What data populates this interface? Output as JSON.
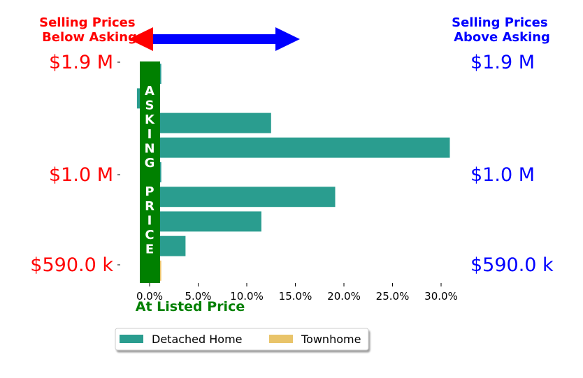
{
  "header": {
    "left_note": [
      "Selling Prices",
      "Below Asking"
    ],
    "right_note": [
      "Selling Prices",
      "Above Asking"
    ]
  },
  "colors": {
    "below": "#ff0000",
    "above": "#0000ff",
    "asking": "#008000",
    "detached": "#2a9d8f",
    "townhome": "#e9c46a"
  },
  "chart_data": {
    "type": "bar",
    "orientation": "horizontal",
    "xlabel": "At Listed Price",
    "xlim": [
      -0.015,
      0.322
    ],
    "x_ticks": [
      "0.0%",
      "5.0%",
      "10.0%",
      "15.0%",
      "20.0%",
      "25.0%",
      "30.0%"
    ],
    "x_tick_values": [
      0,
      0.05,
      0.1,
      0.15,
      0.2,
      0.25,
      0.3
    ],
    "y_ticks_left": [
      "$1.9 M",
      "$1.0 M",
      "$590.0 k"
    ],
    "y_ticks_right": [
      "$1.9 M",
      "$1.0 M",
      "$590.0 k"
    ],
    "asking_band_text": [
      "A",
      "S",
      "K",
      "I",
      "N",
      "G",
      "",
      "P",
      "R",
      "I",
      "C",
      "E"
    ],
    "legend_placement": "below-center",
    "series": [
      {
        "name": "Detached Home",
        "values": [
          0.012,
          -0.013,
          0.125,
          0.309,
          0.012,
          0.191,
          0.115,
          0.037,
          0.0
        ]
      },
      {
        "name": "Townhome",
        "values": [
          0.0,
          0.0,
          0.0,
          0.0,
          0.0,
          0.0,
          0.0,
          0.0,
          0.012
        ]
      }
    ]
  }
}
